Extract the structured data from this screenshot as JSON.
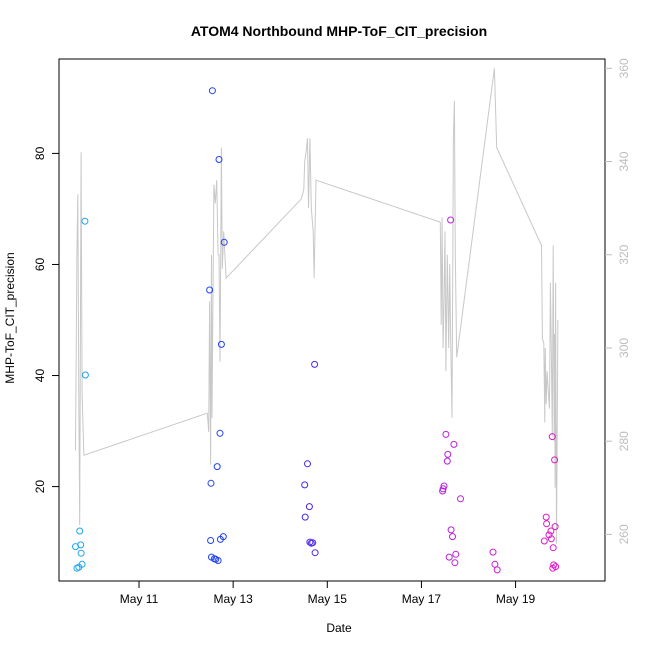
{
  "chart_data": {
    "type": "scatter",
    "title": "ATOM4 Northbound MHP-ToF_CIT_precision",
    "xlabel": "Date",
    "ylabel": "MHP-ToF_CIT_precision",
    "x_unit": "days (May)",
    "xlim": [
      9.3,
      20.9
    ],
    "ylim": [
      3,
      97
    ],
    "y2lim": [
      250,
      362
    ],
    "x_ticks": [
      {
        "value": 11,
        "label": "May 11"
      },
      {
        "value": 13,
        "label": "May 13"
      },
      {
        "value": 15,
        "label": "May 15"
      },
      {
        "value": 17,
        "label": "May 17"
      },
      {
        "value": 19,
        "label": "May 19"
      }
    ],
    "y_ticks": [
      20,
      40,
      60,
      80
    ],
    "y2_ticks": [
      260,
      280,
      300,
      320,
      340,
      360
    ],
    "colors": {
      "line": "#c8c8c8",
      "right_axis": "#bdbdbd",
      "axis": "#000000",
      "gradient": [
        "#1fa9ee",
        "#1a5cf5",
        "#2a22f0",
        "#7a2ce6",
        "#c21fd9",
        "#e21ac6"
      ]
    },
    "scatter": [
      {
        "x": 9.65,
        "y": 9.2
      },
      {
        "x": 9.68,
        "y": 5.3
      },
      {
        "x": 9.72,
        "y": 5.5
      },
      {
        "x": 9.74,
        "y": 12.0
      },
      {
        "x": 9.76,
        "y": 9.5
      },
      {
        "x": 9.77,
        "y": 8.0
      },
      {
        "x": 9.79,
        "y": 6.0
      },
      {
        "x": 9.85,
        "y": 67.8
      },
      {
        "x": 9.86,
        "y": 40.1
      },
      {
        "x": 12.5,
        "y": 55.4
      },
      {
        "x": 12.52,
        "y": 10.3
      },
      {
        "x": 12.53,
        "y": 20.6
      },
      {
        "x": 12.54,
        "y": 7.3
      },
      {
        "x": 12.56,
        "y": 91.3
      },
      {
        "x": 12.6,
        "y": 7.0
      },
      {
        "x": 12.63,
        "y": 6.9
      },
      {
        "x": 12.66,
        "y": 23.6
      },
      {
        "x": 12.68,
        "y": 6.7
      },
      {
        "x": 12.7,
        "y": 78.9
      },
      {
        "x": 12.72,
        "y": 29.6
      },
      {
        "x": 12.73,
        "y": 10.5
      },
      {
        "x": 12.75,
        "y": 45.6
      },
      {
        "x": 12.79,
        "y": 11.0
      },
      {
        "x": 12.81,
        "y": 64.0
      },
      {
        "x": 14.52,
        "y": 20.3
      },
      {
        "x": 14.53,
        "y": 14.5
      },
      {
        "x": 14.58,
        "y": 24.1
      },
      {
        "x": 14.62,
        "y": 16.4
      },
      {
        "x": 14.63,
        "y": 10.0
      },
      {
        "x": 14.66,
        "y": 9.8
      },
      {
        "x": 14.69,
        "y": 9.9
      },
      {
        "x": 14.73,
        "y": 42.0
      },
      {
        "x": 14.74,
        "y": 8.1
      },
      {
        "x": 17.45,
        "y": 19.2
      },
      {
        "x": 17.46,
        "y": 19.6
      },
      {
        "x": 17.48,
        "y": 20.1
      },
      {
        "x": 17.52,
        "y": 29.4
      },
      {
        "x": 17.55,
        "y": 24.6
      },
      {
        "x": 17.56,
        "y": 25.8
      },
      {
        "x": 17.59,
        "y": 7.3
      },
      {
        "x": 17.62,
        "y": 68.0
      },
      {
        "x": 17.63,
        "y": 12.2
      },
      {
        "x": 17.66,
        "y": 11.0
      },
      {
        "x": 17.69,
        "y": 27.6
      },
      {
        "x": 17.71,
        "y": 6.3
      },
      {
        "x": 17.73,
        "y": 7.8
      },
      {
        "x": 17.83,
        "y": 17.8
      },
      {
        "x": 18.52,
        "y": 8.2
      },
      {
        "x": 18.56,
        "y": 6.0
      },
      {
        "x": 18.61,
        "y": 5.0
      },
      {
        "x": 19.61,
        "y": 10.2
      },
      {
        "x": 19.65,
        "y": 14.5
      },
      {
        "x": 19.66,
        "y": 13.3
      },
      {
        "x": 19.71,
        "y": 11.3
      },
      {
        "x": 19.75,
        "y": 12.0
      },
      {
        "x": 19.76,
        "y": 10.6
      },
      {
        "x": 19.78,
        "y": 29.0
      },
      {
        "x": 19.79,
        "y": 5.3
      },
      {
        "x": 19.8,
        "y": 9.0
      },
      {
        "x": 19.81,
        "y": 5.9
      },
      {
        "x": 19.83,
        "y": 24.8
      },
      {
        "x": 19.84,
        "y": 12.8
      },
      {
        "x": 19.85,
        "y": 5.6
      }
    ],
    "line": [
      {
        "x": 9.65,
        "y2": 278
      },
      {
        "x": 9.68,
        "y2": 320
      },
      {
        "x": 9.7,
        "y2": 333
      },
      {
        "x": 9.72,
        "y2": 290
      },
      {
        "x": 9.74,
        "y2": 262
      },
      {
        "x": 9.77,
        "y2": 342
      },
      {
        "x": 9.79,
        "y2": 290
      },
      {
        "x": 9.83,
        "y2": 277
      },
      {
        "x": 12.45,
        "y2": 286
      },
      {
        "x": 12.48,
        "y2": 282
      },
      {
        "x": 12.5,
        "y2": 310
      },
      {
        "x": 12.52,
        "y2": 275
      },
      {
        "x": 12.54,
        "y2": 320
      },
      {
        "x": 12.55,
        "y2": 285
      },
      {
        "x": 12.57,
        "y2": 309
      },
      {
        "x": 12.59,
        "y2": 335
      },
      {
        "x": 12.62,
        "y2": 331
      },
      {
        "x": 12.65,
        "y2": 336
      },
      {
        "x": 12.68,
        "y2": 320
      },
      {
        "x": 12.7,
        "y2": 320
      },
      {
        "x": 12.72,
        "y2": 297
      },
      {
        "x": 12.75,
        "y2": 343
      },
      {
        "x": 12.77,
        "y2": 317
      },
      {
        "x": 12.8,
        "y2": 325
      },
      {
        "x": 12.85,
        "y2": 315
      },
      {
        "x": 14.45,
        "y2": 332
      },
      {
        "x": 14.5,
        "y2": 334
      },
      {
        "x": 14.52,
        "y2": 340
      },
      {
        "x": 14.55,
        "y2": 342
      },
      {
        "x": 14.58,
        "y2": 345
      },
      {
        "x": 14.6,
        "y2": 330
      },
      {
        "x": 14.63,
        "y2": 345
      },
      {
        "x": 14.66,
        "y2": 330
      },
      {
        "x": 14.7,
        "y2": 325
      },
      {
        "x": 14.72,
        "y2": 315
      },
      {
        "x": 14.76,
        "y2": 336
      },
      {
        "x": 17.4,
        "y2": 327
      },
      {
        "x": 17.42,
        "y2": 305
      },
      {
        "x": 17.44,
        "y2": 328
      },
      {
        "x": 17.46,
        "y2": 300
      },
      {
        "x": 17.48,
        "y2": 310
      },
      {
        "x": 17.5,
        "y2": 325
      },
      {
        "x": 17.52,
        "y2": 295
      },
      {
        "x": 17.55,
        "y2": 320
      },
      {
        "x": 17.58,
        "y2": 300
      },
      {
        "x": 17.6,
        "y2": 318
      },
      {
        "x": 17.62,
        "y2": 303
      },
      {
        "x": 17.65,
        "y2": 285
      },
      {
        "x": 17.68,
        "y2": 345
      },
      {
        "x": 17.7,
        "y2": 353
      },
      {
        "x": 17.72,
        "y2": 320
      },
      {
        "x": 17.75,
        "y2": 298
      },
      {
        "x": 18.55,
        "y2": 360
      },
      {
        "x": 18.6,
        "y2": 343
      },
      {
        "x": 19.55,
        "y2": 322
      },
      {
        "x": 19.57,
        "y2": 302
      },
      {
        "x": 19.6,
        "y2": 301
      },
      {
        "x": 19.62,
        "y2": 284
      },
      {
        "x": 19.63,
        "y2": 300
      },
      {
        "x": 19.65,
        "y2": 288
      },
      {
        "x": 19.67,
        "y2": 295
      },
      {
        "x": 19.7,
        "y2": 290
      },
      {
        "x": 19.72,
        "y2": 287
      },
      {
        "x": 19.74,
        "y2": 314
      },
      {
        "x": 19.76,
        "y2": 300
      },
      {
        "x": 19.78,
        "y2": 281
      },
      {
        "x": 19.8,
        "y2": 322
      },
      {
        "x": 19.82,
        "y2": 280
      },
      {
        "x": 19.83,
        "y2": 303
      },
      {
        "x": 19.84,
        "y2": 270
      },
      {
        "x": 19.85,
        "y2": 314
      },
      {
        "x": 19.87,
        "y2": 258
      },
      {
        "x": 19.9,
        "y2": 306
      }
    ]
  }
}
